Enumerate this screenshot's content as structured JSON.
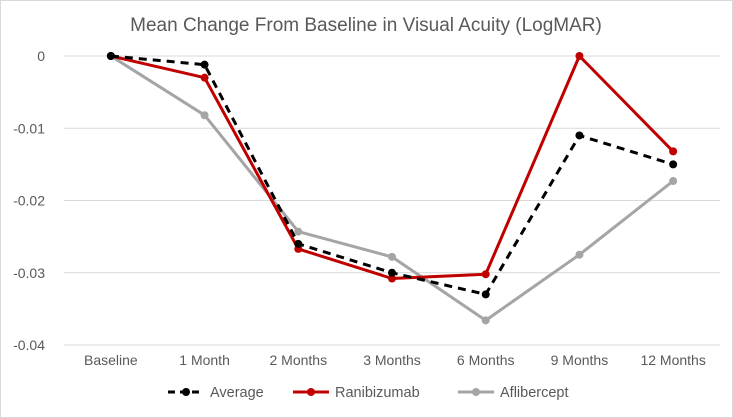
{
  "chart_data": {
    "type": "line",
    "title": "Mean Change From Baseline in Visual Acuity (LogMAR)",
    "xlabel": "",
    "ylabel": "",
    "categories": [
      "Baseline",
      "1 Month",
      "2 Months",
      "3 Months",
      "6 Months",
      "9 Months",
      "12 Months"
    ],
    "ylim": [
      -0.04,
      0
    ],
    "yticks": [
      0,
      -0.01,
      -0.02,
      -0.03,
      -0.04
    ],
    "ytick_labels": [
      "0",
      "-0.01",
      "-0.02",
      "-0.03",
      "-0.04"
    ],
    "grid": true,
    "legend_position": "bottom",
    "series": [
      {
        "name": "Average",
        "color": "#000000",
        "line_style": "dashed",
        "values": [
          0,
          -0.0012,
          -0.026,
          -0.03,
          -0.033,
          -0.011,
          -0.015
        ]
      },
      {
        "name": "Ranibizumab",
        "color": "#c00000",
        "line_style": "solid",
        "values": [
          0,
          -0.003,
          -0.0267,
          -0.0308,
          -0.0302,
          0,
          -0.0132
        ]
      },
      {
        "name": "Aflibercept",
        "color": "#a5a5a5",
        "line_style": "solid",
        "values": [
          0,
          -0.0082,
          -0.0243,
          -0.0278,
          -0.0366,
          -0.0275,
          -0.0173
        ]
      }
    ]
  }
}
